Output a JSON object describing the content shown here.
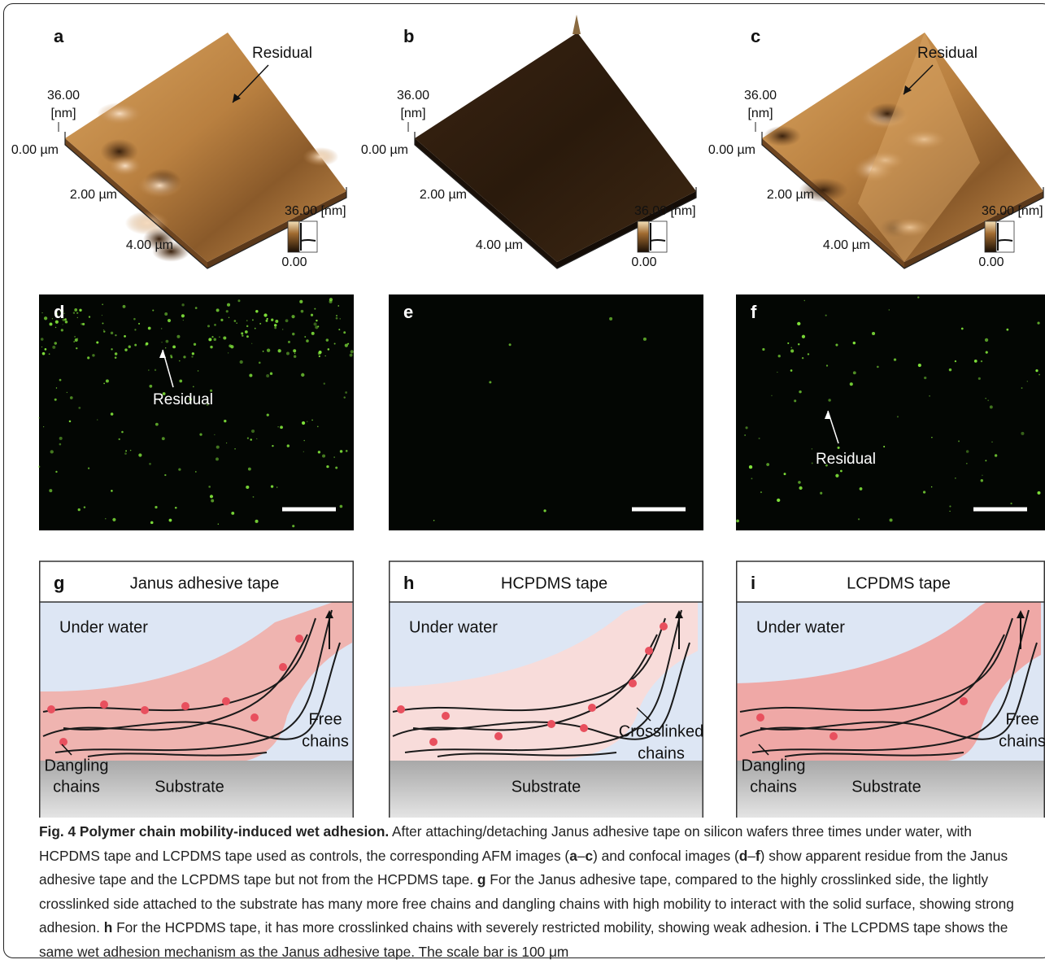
{
  "afm_panels": [
    {
      "letter": "a",
      "z_max": "36.00",
      "z_unit": "[nm]",
      "x_labels": [
        "0.00 µm",
        "2.00 µm",
        "4.00 µm"
      ],
      "colorbar_max": "36.00 [nm]",
      "colorbar_min": "0.00",
      "annotation": "Residual"
    },
    {
      "letter": "b",
      "z_max": "36.00",
      "z_unit": "[nm]",
      "x_labels": [
        "0.00 µm",
        "2.00 µm",
        "4.00 µm"
      ],
      "colorbar_max": "36.00 [nm]",
      "colorbar_min": "0.00"
    },
    {
      "letter": "c",
      "z_max": "36.00",
      "z_unit": "[nm]",
      "x_labels": [
        "0.00 µm",
        "2.00 µm",
        "4.00 µm"
      ],
      "colorbar_max": "36.00 [nm]",
      "colorbar_min": "0.00",
      "annotation": "Residual"
    }
  ],
  "confocal_panels": [
    {
      "letter": "d",
      "annotation": "Residual"
    },
    {
      "letter": "e"
    },
    {
      "letter": "f",
      "annotation": "Residual"
    }
  ],
  "schematics": [
    {
      "letter": "g",
      "title": "Janus adhesive tape",
      "medium": "Under water",
      "side_label": [
        "Free",
        "chains"
      ],
      "bottom_label": [
        "Dangling",
        "chains"
      ],
      "substrate": "Substrate"
    },
    {
      "letter": "h",
      "title": "HCPDMS tape",
      "medium": "Under water",
      "side_label": [
        "Crosslinked",
        "chains"
      ],
      "substrate": "Substrate"
    },
    {
      "letter": "i",
      "title": "LCPDMS tape",
      "medium": "Under water",
      "side_label": [
        "Free",
        "chains"
      ],
      "bottom_label": [
        "Dangling",
        "chains"
      ],
      "substrate": "Substrate"
    }
  ],
  "caption": {
    "title": "Fig. 4 Polymer chain mobility-induced wet adhesion.",
    "body": [
      " After attaching/detaching Janus adhesive tape on silicon wafers three times under water, with HCPDMS tape and LCPDMS tape used as controls, the corresponding AFM images (",
      "a",
      "–",
      "c",
      ") and confocal images (",
      "d",
      "–",
      "f",
      ") show apparent residue from the Janus adhesive tape and the LCPDMS tape but not from the HCPDMS tape. ",
      "g",
      " For the Janus adhesive tape, compared to the highly crosslinked side, the lightly crosslinked side attached to the substrate has many more free chains and dangling chains with high mobility to interact with the solid surface, showing strong adhesion. ",
      "h",
      " For the HCPDMS tape, it has more crosslinked chains with severely restricted mobility, showing weak adhesion. ",
      "i",
      " The LCPDMS tape shows the same wet adhesion mechanism as the Janus adhesive tape. The scale bar is 100 μm"
    ]
  }
}
